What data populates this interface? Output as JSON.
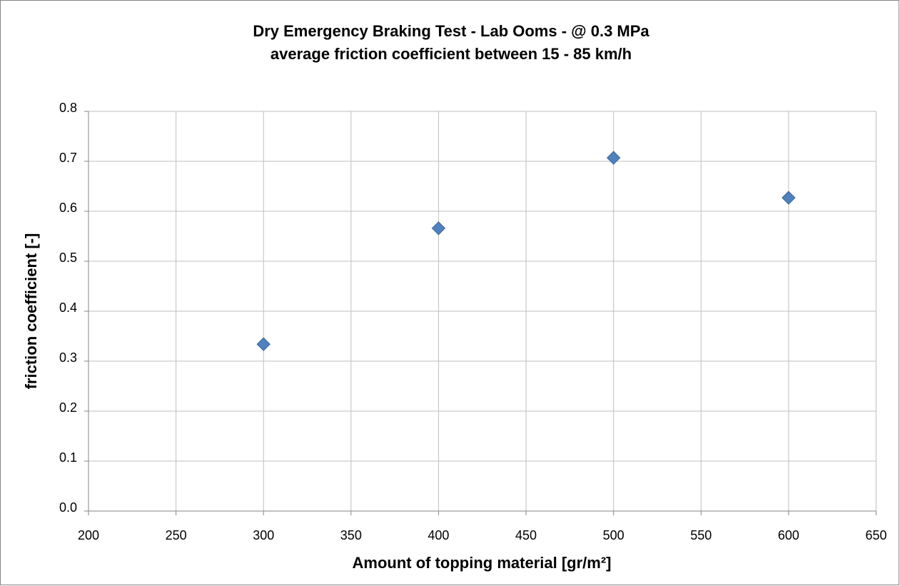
{
  "chart_data": {
    "type": "scatter",
    "title": "Dry Emergency Braking Test - Lab Ooms -  @ 0.3 MPa",
    "subtitle": "average friction coefficient between 15 - 85 km/h",
    "xlabel": "Amount of topping material [gr/m²]",
    "ylabel": "friction coefficient [-]",
    "x": [
      300,
      400,
      500,
      600
    ],
    "values": [
      0.334,
      0.566,
      0.707,
      0.627
    ],
    "color": "#4f81bd",
    "xlim": [
      200,
      650
    ],
    "xticks": [
      200,
      250,
      300,
      350,
      400,
      450,
      500,
      550,
      600,
      650
    ],
    "ylim": [
      0,
      0.8
    ],
    "yticks": [
      {
        "value": 0,
        "label": "0.0"
      },
      0.1,
      0.2,
      0.3,
      0.4,
      0.5,
      0.6,
      0.7,
      0.8
    ],
    "grid": true
  }
}
